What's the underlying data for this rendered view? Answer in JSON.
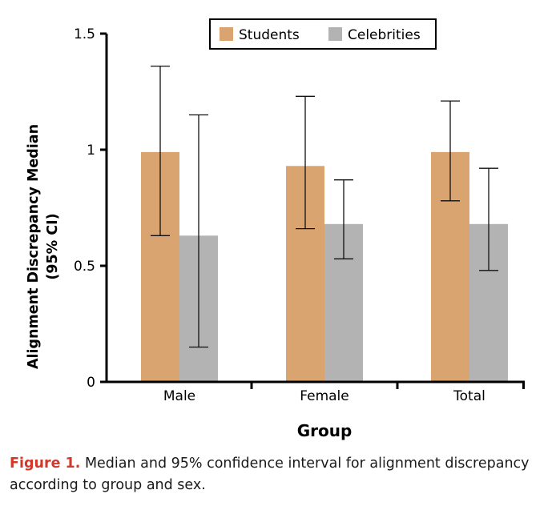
{
  "chart_data": {
    "type": "bar",
    "xlabel": "Group",
    "ylabel": "Alignment Discrepancy Median (95% CI)",
    "ylim": [
      0,
      1.5
    ],
    "y_ticks": [
      {
        "value": 0,
        "label": "0"
      },
      {
        "value": 0.5,
        "label": "0.5"
      },
      {
        "value": 1,
        "label": "1"
      },
      {
        "value": 1.5,
        "label": "1.5"
      }
    ],
    "categories": [
      "Male",
      "Female",
      "Total"
    ],
    "series": [
      {
        "name": "Students",
        "color": "#d9a46f",
        "values": [
          0.99,
          0.93,
          0.99
        ],
        "ci_low": [
          0.63,
          0.66,
          0.78
        ],
        "ci_high": [
          1.36,
          1.23,
          1.21
        ]
      },
      {
        "name": "Celebrities",
        "color": "#b3b3b3",
        "values": [
          0.63,
          0.68,
          0.68
        ],
        "ci_low": [
          0.15,
          0.53,
          0.48
        ],
        "ci_high": [
          1.15,
          0.87,
          0.92
        ]
      }
    ],
    "legend": {
      "position": "top-center",
      "entries": [
        "Students",
        "Celebrities"
      ]
    }
  },
  "caption": {
    "label": "Figure 1.",
    "text": "Median and 95% confidence interval for alignment discrepancy according to group and sex."
  }
}
